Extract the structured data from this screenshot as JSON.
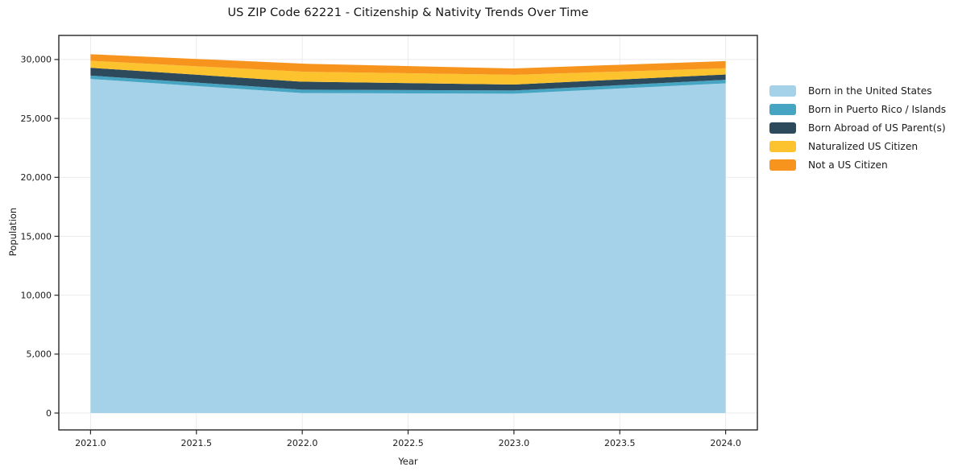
{
  "chart_data": {
    "type": "area",
    "stacked": true,
    "title": "US ZIP Code 62221 - Citizenship & Nativity Trends Over Time",
    "xlabel": "Year",
    "ylabel": "Population",
    "x": [
      2021,
      2022,
      2023,
      2024
    ],
    "series": [
      {
        "name": "Born in the United States",
        "color": "#a5d2e8",
        "values": [
          28350,
          27150,
          27100,
          27980
        ]
      },
      {
        "name": "Born in Puerto Rico / Islands",
        "color": "#46a5c2",
        "values": [
          290,
          290,
          270,
          300
        ]
      },
      {
        "name": "Born Abroad of US Parent(s)",
        "color": "#2d4a5c",
        "values": [
          660,
          680,
          510,
          450
        ]
      },
      {
        "name": "Naturalized US Citizen",
        "color": "#fdc32f",
        "values": [
          590,
          850,
          820,
          530
        ]
      },
      {
        "name": "Not a US Citizen",
        "color": "#f7941e",
        "values": [
          560,
          680,
          540,
          610
        ]
      }
    ],
    "xlim": [
      2020.85,
      2024.15
    ],
    "ylim": [
      -1432,
      32045
    ],
    "xticks": {
      "values": [
        2021.0,
        2021.5,
        2022.0,
        2022.5,
        2023.0,
        2023.5,
        2024.0
      ],
      "labels": [
        "2021.0",
        "2021.5",
        "2022.0",
        "2022.5",
        "2023.0",
        "2023.5",
        "2024.0"
      ]
    },
    "yticks": {
      "values": [
        0,
        5000,
        10000,
        15000,
        20000,
        25000,
        30000
      ],
      "labels": [
        "0",
        "5,000",
        "10,000",
        "15,000",
        "20,000",
        "25,000",
        "30,000"
      ]
    },
    "grid": true,
    "grid_color": "#ebebeb",
    "spine_color": "#262626",
    "tick_color": "#262626",
    "legend_position": "right"
  }
}
